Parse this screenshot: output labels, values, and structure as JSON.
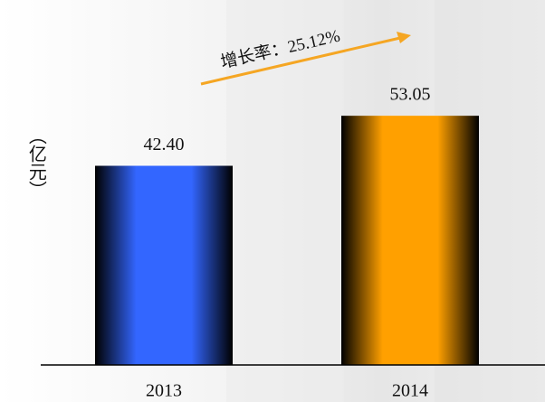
{
  "chart_data": {
    "type": "bar",
    "y_label": "（亿元）",
    "annotation": "增长率：25.12%",
    "categories": [
      "2013",
      "2014"
    ],
    "values": [
      42.4,
      53.05
    ],
    "value_labels": [
      "42.40",
      "53.05"
    ],
    "colors": [
      "#3366ff",
      "#ffa000"
    ],
    "annotation_color": "#f5a623",
    "ylim": [
      0,
      60
    ]
  }
}
